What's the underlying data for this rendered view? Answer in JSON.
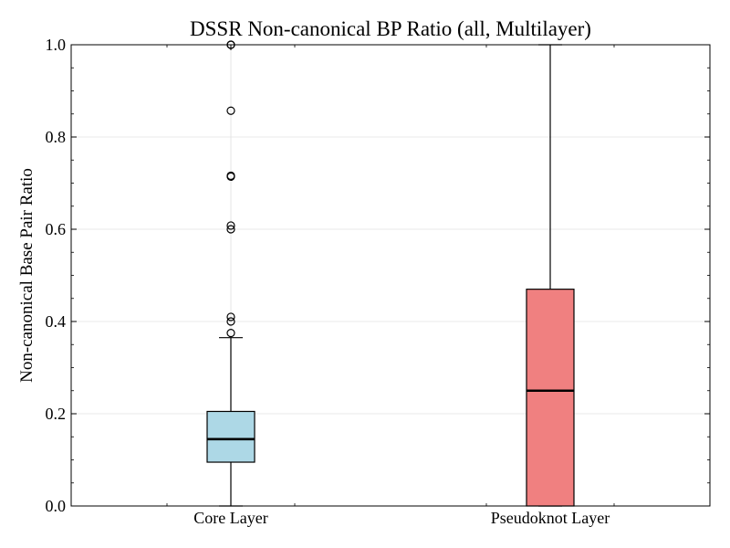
{
  "chart_data": {
    "type": "box",
    "title": "DSSR Non-canonical BP Ratio (all, Multilayer)",
    "xlabel": "",
    "ylabel": "Non-canonical Base Pair Ratio",
    "ylim": [
      0.0,
      1.0
    ],
    "yticks": [
      "0.0",
      "0.2",
      "0.4",
      "0.6",
      "0.8",
      "1.0"
    ],
    "minor_ytick_step": 0.05,
    "grid": true,
    "categories": [
      "Core Layer",
      "Pseudoknot Layer"
    ],
    "boxes": [
      {
        "category": "Core Layer",
        "color": "#add8e6",
        "whisker_low": 0.0,
        "q1": 0.095,
        "median": 0.145,
        "q3": 0.205,
        "whisker_high": 0.365,
        "outliers": [
          0.375,
          0.4,
          0.41,
          0.6,
          0.608,
          0.714,
          0.716,
          0.857,
          1.0,
          1.0
        ]
      },
      {
        "category": "Pseudoknot Layer",
        "color": "#f08080",
        "whisker_low": 0.0,
        "q1": 0.0,
        "median": 0.25,
        "q3": 0.47,
        "whisker_high": 1.0,
        "outliers": []
      }
    ]
  }
}
